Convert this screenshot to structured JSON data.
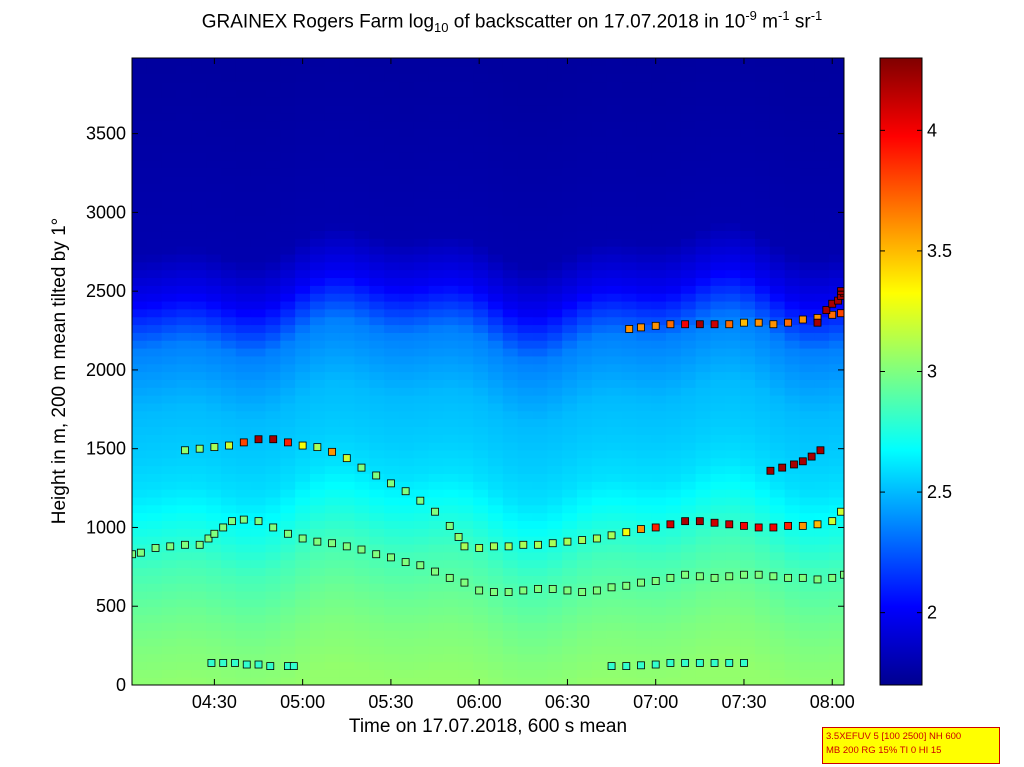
{
  "title": {
    "part1": "GRAINEX Rogers Farm log",
    "sub": "10",
    "part2": " of backscatter on 17.07.2018 in 10",
    "sup1": "-9",
    "part3": " m",
    "sup2": "-1",
    "part4": " sr",
    "sup3": "-1"
  },
  "info_box": {
    "line1": "3.5XEFUV 5 [100 2500] NH 600",
    "line2": "MB 200 RG 15% TI 0 HI 15"
  },
  "chart_data": {
    "type": "heatmap",
    "title": "GRAINEX Rogers Farm log10 of backscatter on 17.07.2018 in 10^-9 m^-1 sr^-1",
    "xlabel": "Time on 17.07.2018, 600 s mean",
    "ylabel": "Height in m, 200 m mean tilted by 1°",
    "x_unit": "minutes of day (hh:mm)",
    "xlim": [
      242,
      484
    ],
    "ylim": [
      0,
      3980
    ],
    "x_ticks": [
      270,
      300,
      330,
      360,
      390,
      420,
      450,
      480
    ],
    "x_tick_labels": [
      "04:30",
      "05:00",
      "05:30",
      "06:00",
      "06:30",
      "07:00",
      "07:30",
      "08:00"
    ],
    "y_ticks": [
      0,
      500,
      1000,
      1500,
      2000,
      2500,
      3000,
      3500
    ],
    "y_tick_labels": [
      "0",
      "500",
      "1000",
      "1500",
      "2000",
      "2500",
      "3000",
      "3500"
    ],
    "colorbar": {
      "colormap": "jet",
      "clim": [
        1.7,
        4.3
      ],
      "ticks": [
        2,
        2.5,
        3,
        3.5,
        4
      ],
      "tick_labels": [
        "2",
        "2.5",
        "3",
        "3.5",
        "4"
      ]
    },
    "field_profile": {
      "description_points_height_value": [
        [
          0,
          3.05
        ],
        [
          300,
          3.0
        ],
        [
          500,
          2.95
        ],
        [
          800,
          2.85
        ],
        [
          1300,
          2.6
        ],
        [
          1500,
          2.55
        ],
        [
          1800,
          2.5
        ],
        [
          2200,
          2.35
        ],
        [
          2500,
          2.0
        ],
        [
          2800,
          1.82
        ],
        [
          3980,
          1.78
        ]
      ]
    },
    "layer_series": [
      {
        "x": [
          242,
          245,
          250,
          255,
          260,
          265,
          268,
          270,
          273,
          276,
          280,
          285,
          290,
          295,
          300,
          305,
          310,
          315,
          320,
          325,
          330,
          335,
          340,
          345,
          350,
          355,
          360,
          365,
          370,
          375,
          380,
          385,
          390,
          395,
          400,
          405,
          410,
          415,
          420,
          425,
          430,
          435,
          440,
          445,
          450,
          455,
          460,
          465,
          470,
          475,
          480,
          484
        ],
        "y": [
          830,
          840,
          870,
          880,
          890,
          890,
          930,
          960,
          1000,
          1040,
          1050,
          1040,
          1000,
          960,
          930,
          910,
          900,
          880,
          860,
          830,
          810,
          780,
          760,
          720,
          680,
          650,
          600,
          590,
          590,
          600,
          610,
          610,
          600,
          590,
          600,
          620,
          630,
          650,
          660,
          680,
          700,
          690,
          680,
          690,
          700,
          700,
          690,
          680,
          680,
          670,
          680,
          700
        ],
        "value": [
          3.0,
          3.0,
          3.0,
          3.0,
          3.0,
          3.0,
          3.0,
          3.0,
          3.0,
          3.0,
          3.0,
          3.0,
          3.0,
          3.0,
          3.0,
          3.0,
          3.0,
          3.0,
          3.0,
          3.0,
          3.0,
          3.0,
          3.0,
          3.0,
          3.0,
          3.0,
          3.0,
          3.0,
          3.0,
          3.0,
          3.0,
          3.0,
          3.0,
          3.0,
          3.0,
          3.0,
          3.0,
          3.0,
          3.0,
          3.0,
          3.0,
          3.0,
          3.0,
          3.0,
          3.0,
          3.0,
          3.0,
          3.0,
          3.0,
          3.0,
          3.0,
          3.0
        ]
      },
      {
        "x": [
          260,
          265,
          270,
          275,
          280,
          285,
          290,
          295,
          300,
          305,
          310,
          315,
          320,
          325,
          330,
          335,
          340,
          345,
          350,
          353,
          355,
          360,
          365,
          370,
          375,
          380,
          385,
          390,
          395,
          400,
          405,
          410,
          415,
          420,
          425,
          430,
          435,
          440,
          445,
          450,
          455,
          460,
          465,
          470,
          475,
          480,
          483
        ],
        "y": [
          1490,
          1500,
          1510,
          1520,
          1540,
          1560,
          1560,
          1540,
          1520,
          1510,
          1480,
          1440,
          1380,
          1330,
          1280,
          1230,
          1170,
          1100,
          1010,
          940,
          880,
          870,
          880,
          880,
          890,
          890,
          900,
          910,
          920,
          930,
          950,
          970,
          990,
          1000,
          1020,
          1040,
          1040,
          1030,
          1020,
          1010,
          1000,
          1000,
          1010,
          1010,
          1020,
          1040,
          1100
        ],
        "value": [
          3.05,
          3.05,
          3.1,
          3.2,
          3.8,
          4.2,
          4.2,
          3.9,
          3.3,
          3.1,
          3.6,
          3.2,
          3.0,
          3.0,
          3.0,
          3.0,
          3.0,
          3.0,
          3.0,
          3.05,
          3.1,
          3.1,
          3.1,
          3.1,
          3.1,
          3.1,
          3.1,
          3.1,
          3.1,
          3.1,
          3.1,
          3.3,
          3.6,
          3.9,
          4.1,
          4.2,
          4.2,
          4.1,
          4.1,
          4.0,
          4.0,
          4.0,
          3.9,
          3.6,
          3.5,
          3.2,
          3.2
        ]
      },
      {
        "x": [
          411,
          415,
          420,
          425,
          430,
          435,
          440,
          445,
          450,
          455,
          460,
          465,
          470,
          475,
          480,
          483
        ],
        "y": [
          2260,
          2270,
          2280,
          2290,
          2290,
          2290,
          2290,
          2290,
          2300,
          2300,
          2290,
          2300,
          2320,
          2330,
          2350,
          2360
        ],
        "value": [
          3.6,
          3.6,
          3.6,
          3.7,
          4.0,
          4.2,
          4.1,
          3.7,
          3.5,
          3.6,
          3.6,
          3.7,
          3.6,
          3.6,
          3.7,
          3.8
        ]
      },
      {
        "x": [
          459,
          463,
          467,
          470,
          473,
          476
        ],
        "y": [
          1360,
          1380,
          1400,
          1420,
          1450,
          1490
        ],
        "value": [
          4.2,
          4.2,
          4.2,
          4.2,
          4.2,
          4.2
        ]
      },
      {
        "x": [
          475,
          478,
          480,
          482,
          483,
          484,
          483
        ],
        "y": [
          2300,
          2380,
          2420,
          2440,
          2470,
          2490,
          2500
        ],
        "value": [
          4.2,
          4.2,
          4.2,
          4.2,
          4.2,
          4.2,
          4.2
        ]
      },
      {
        "x": [
          269,
          273,
          277,
          281,
          285,
          289,
          295,
          297,
          405,
          410,
          415,
          420,
          425,
          430,
          435,
          440,
          445,
          450
        ],
        "y": [
          140,
          140,
          140,
          130,
          130,
          120,
          120,
          120,
          120,
          120,
          125,
          130,
          140,
          140,
          140,
          140,
          140,
          140
        ],
        "value": [
          2.8,
          2.8,
          2.8,
          2.8,
          2.8,
          2.8,
          2.8,
          2.8,
          2.8,
          2.8,
          2.8,
          2.8,
          2.8,
          2.8,
          2.8,
          2.8,
          2.8,
          2.8
        ]
      }
    ]
  }
}
